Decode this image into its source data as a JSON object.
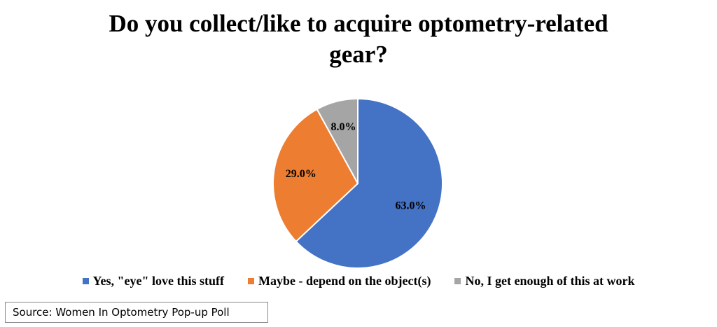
{
  "chart_data": {
    "type": "pie",
    "title": "Do you collect/like to acquire optometry-related gear?",
    "categories": [
      "Yes, \"eye\" love this stuff",
      "Maybe - depend on the object(s)",
      "No, I get enough of this at work"
    ],
    "values": [
      63,
      29,
      8
    ],
    "value_labels": [
      "63.0%",
      "29.0%",
      "8.0%"
    ],
    "colors": [
      "#4472c4",
      "#ed7d31",
      "#a5a5a5"
    ],
    "legend": "bottom"
  },
  "source": "Source: Women In Optometry Pop-up Poll"
}
